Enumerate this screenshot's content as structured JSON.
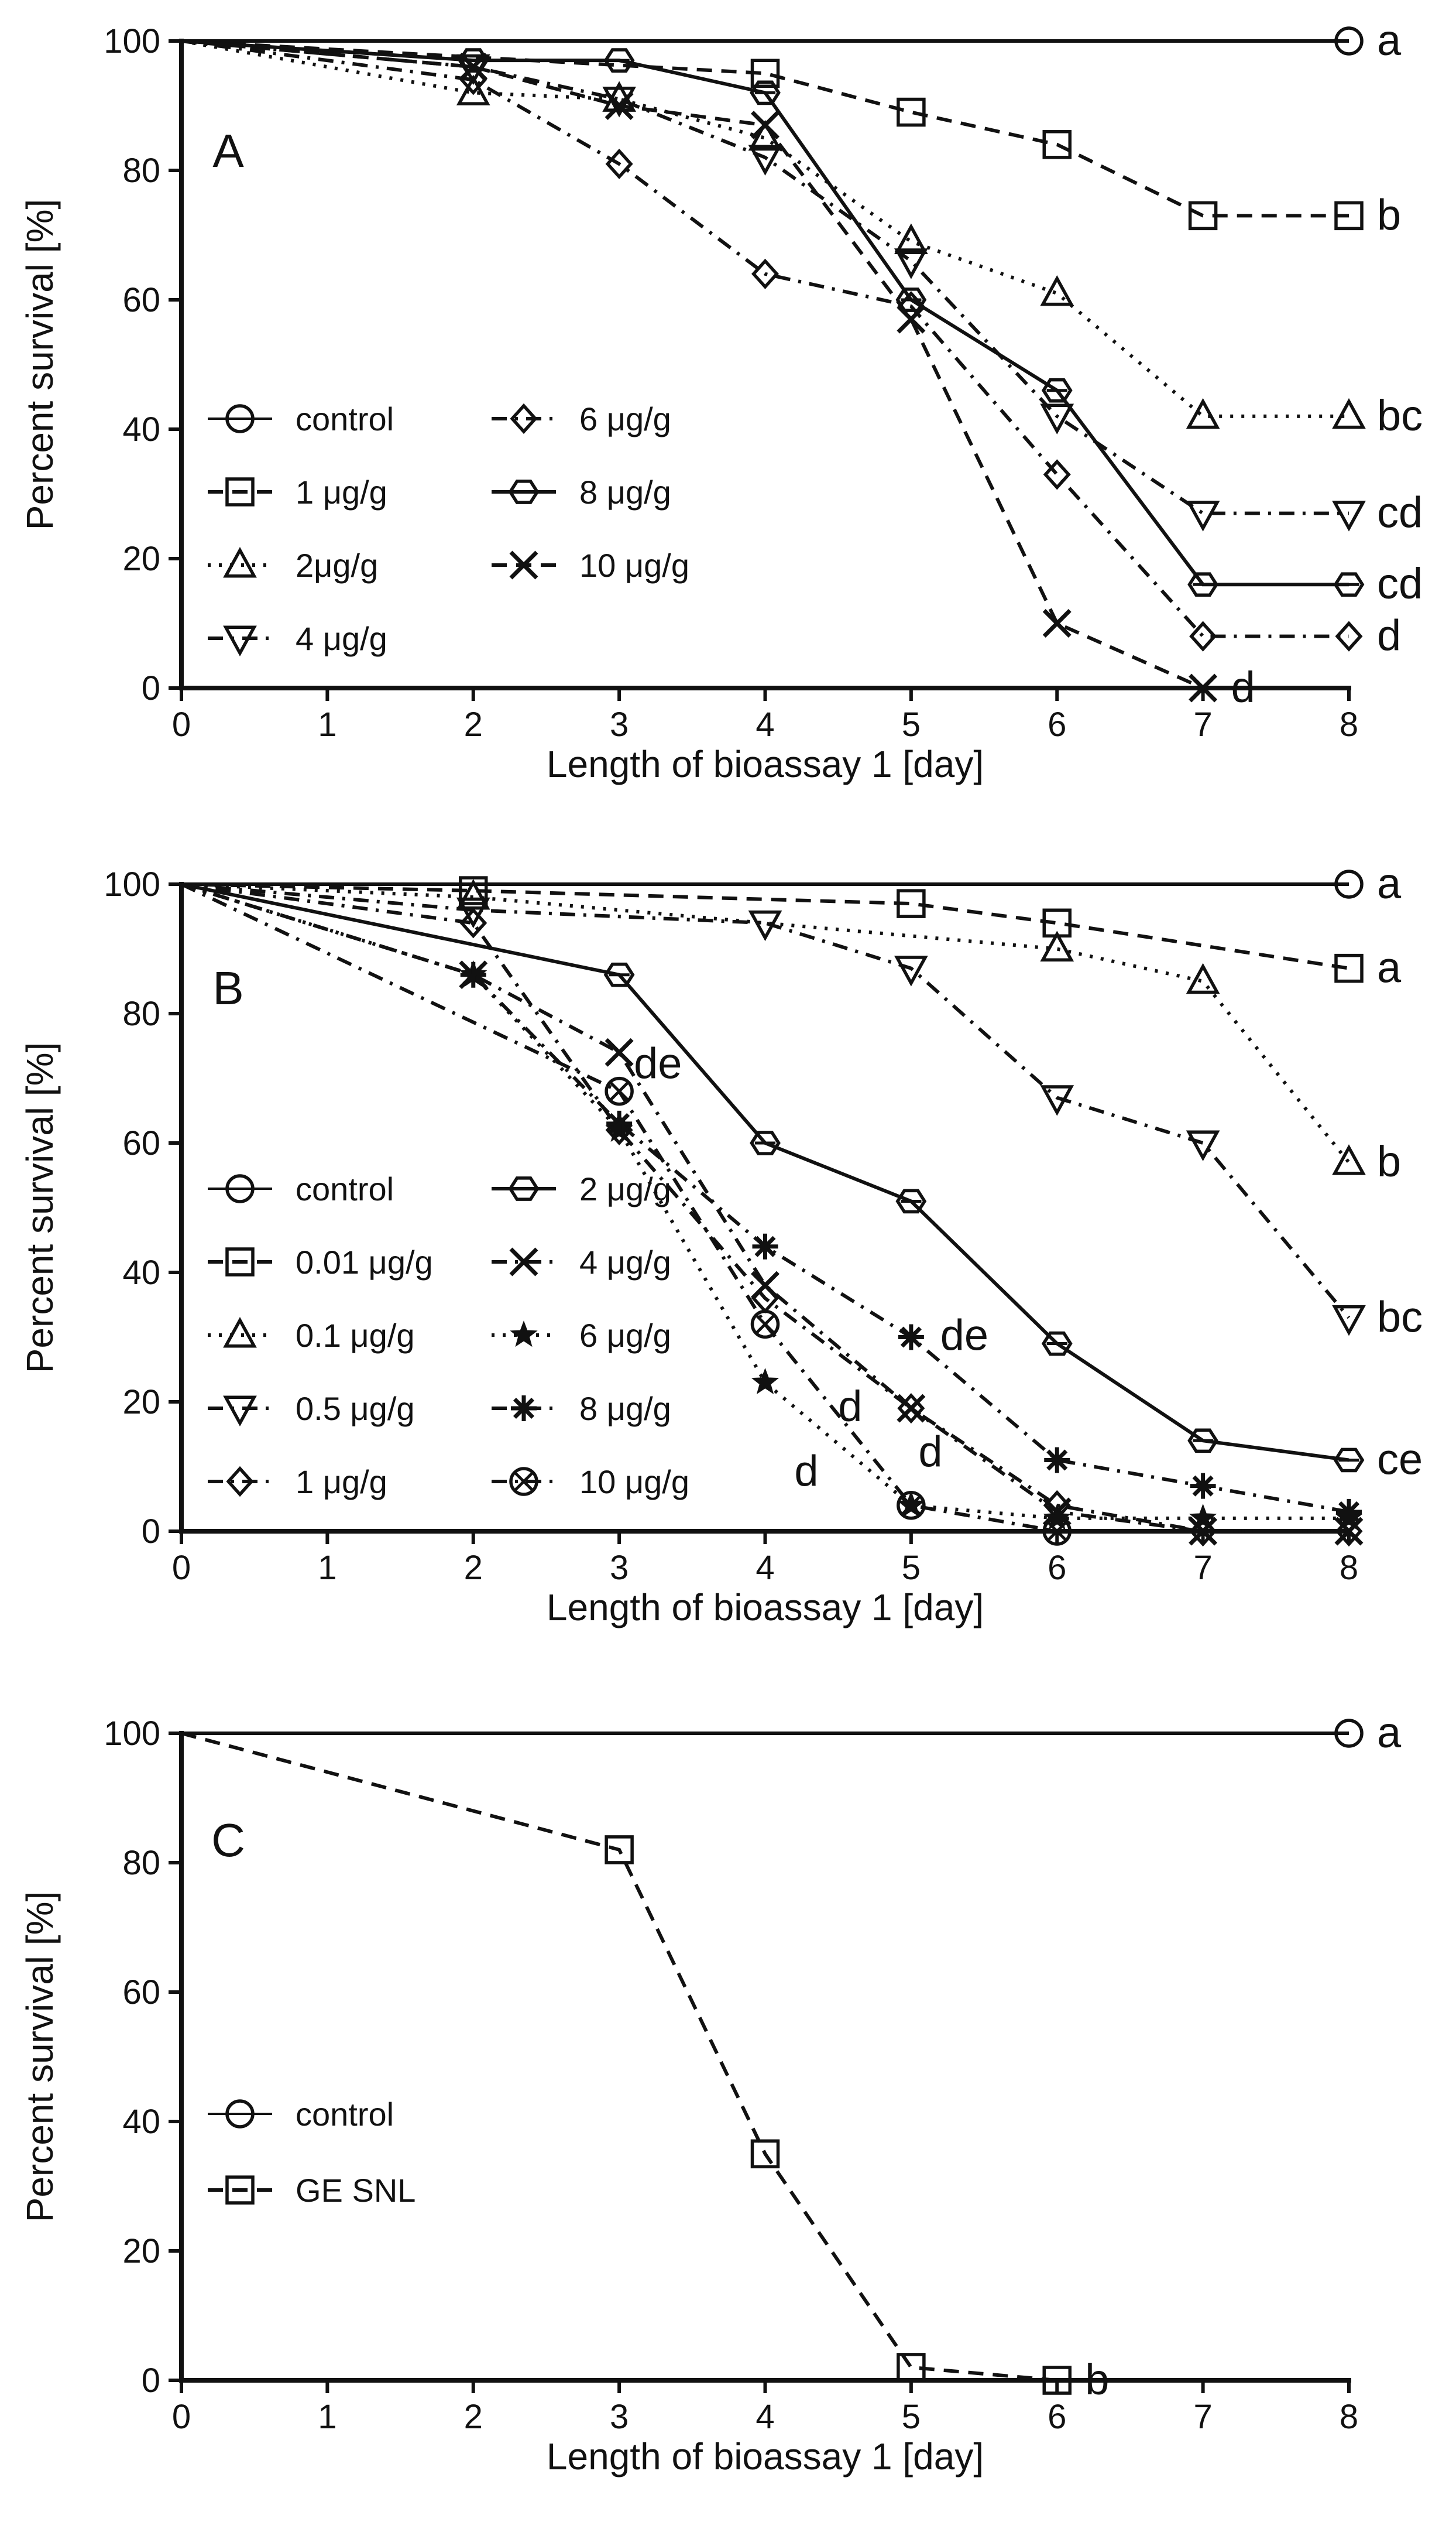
{
  "colors": {
    "ink": "#111111",
    "background": "#ffffff"
  },
  "chart_data": [
    {
      "type": "line",
      "panel": "A",
      "xlabel": "Length of bioassay 1 [day]",
      "ylabel": "Percent survival [%]",
      "x_ticks": [
        "0",
        "1",
        "2",
        "3",
        "4",
        "5",
        "6",
        "7",
        "8"
      ],
      "y_ticks": [
        "0",
        "20",
        "40",
        "60",
        "80",
        "100"
      ],
      "xlim": [
        0,
        8
      ],
      "ylim": [
        0,
        100
      ],
      "legend_columns": 2,
      "series": [
        {
          "name": "control",
          "marker": "circle",
          "dash": "solid-thin",
          "x": [
            0,
            8
          ],
          "y": [
            100,
            100
          ],
          "end_label": "a"
        },
        {
          "name": "1 μg/g",
          "marker": "square",
          "dash": "dashed",
          "x": [
            0,
            4,
            5,
            6,
            7,
            8
          ],
          "y": [
            100,
            95,
            89,
            84,
            73,
            73
          ],
          "end_label": "b"
        },
        {
          "name": "2μg/g",
          "marker": "triangle-up",
          "dash": "dotted",
          "x": [
            0,
            2,
            3,
            4,
            5,
            6,
            7,
            8
          ],
          "y": [
            100,
            92,
            91,
            85,
            69,
            61,
            42,
            42
          ],
          "end_label": "bc"
        },
        {
          "name": "4 μg/g",
          "marker": "triangle-down",
          "dash": "dashdot",
          "x": [
            0,
            2,
            3,
            4,
            5,
            6,
            7,
            8
          ],
          "y": [
            100,
            96,
            91,
            82,
            66,
            42,
            27,
            27
          ],
          "end_label": "cd"
        },
        {
          "name": "6 μg/g",
          "marker": "diamond",
          "dash": "dashdot",
          "x": [
            0,
            2,
            3,
            4,
            5,
            6,
            7,
            8
          ],
          "y": [
            100,
            94,
            81,
            64,
            59,
            33,
            8,
            8
          ],
          "end_label": "d"
        },
        {
          "name": "8 μg/g",
          "marker": "hexagon",
          "dash": "solid",
          "x": [
            0,
            2,
            3,
            4,
            5,
            6,
            7,
            8
          ],
          "y": [
            100,
            97,
            97,
            92,
            60,
            46,
            16,
            16
          ],
          "end_label": "cd"
        },
        {
          "name": "10 μg/g",
          "marker": "x",
          "dash": "dashed",
          "x": [
            0,
            2,
            3,
            4,
            5,
            6,
            7
          ],
          "y": [
            100,
            96,
            90,
            87,
            57,
            10,
            0
          ],
          "end_label": "d"
        }
      ]
    },
    {
      "type": "line",
      "panel": "B",
      "xlabel": "Length of bioassay 1 [day]",
      "ylabel": "Percent survival [%]",
      "x_ticks": [
        "0",
        "1",
        "2",
        "3",
        "4",
        "5",
        "6",
        "7",
        "8"
      ],
      "y_ticks": [
        "0",
        "20",
        "40",
        "60",
        "80",
        "100"
      ],
      "xlim": [
        0,
        8
      ],
      "ylim": [
        0,
        100
      ],
      "legend_columns": 2,
      "series": [
        {
          "name": "control",
          "marker": "circle",
          "dash": "solid-thin",
          "x": [
            0,
            8
          ],
          "y": [
            100,
            100
          ],
          "end_label": "a"
        },
        {
          "name": "0.01 μg/g",
          "marker": "square",
          "dash": "dashed",
          "x": [
            0,
            2,
            5,
            6,
            8
          ],
          "y": [
            100,
            99,
            97,
            94,
            87
          ],
          "end_label": "a"
        },
        {
          "name": "0.1 μg/g",
          "marker": "triangle-up",
          "dash": "dotted",
          "x": [
            0,
            2,
            6,
            7,
            8
          ],
          "y": [
            100,
            98,
            90,
            85,
            57
          ],
          "end_label": "b"
        },
        {
          "name": "0.5 μg/g",
          "marker": "triangle-down",
          "dash": "dashdot",
          "x": [
            0,
            2,
            4,
            5,
            6,
            7,
            8
          ],
          "y": [
            100,
            96,
            94,
            87,
            67,
            60,
            33
          ],
          "end_label": "bc"
        },
        {
          "name": "1 μg/g",
          "marker": "diamond",
          "dash": "dashdot",
          "x": [
            0,
            2,
            3,
            4,
            5,
            6,
            7,
            8
          ],
          "y": [
            100,
            94,
            62,
            36,
            19,
            4,
            0,
            0
          ]
        },
        {
          "name": "2 μg/g",
          "marker": "hexagon",
          "dash": "solid",
          "x": [
            0,
            3,
            4,
            5,
            6,
            7,
            8
          ],
          "y": [
            100,
            86,
            60,
            51,
            29,
            14,
            11
          ],
          "end_label": "ce"
        },
        {
          "name": "4 μg/g",
          "marker": "x",
          "dash": "dashdot",
          "x": [
            0,
            2,
            3,
            4,
            5,
            6,
            7,
            8
          ],
          "y": [
            100,
            86,
            74,
            38,
            19,
            3,
            0,
            0
          ]
        },
        {
          "name": "6 μg/g",
          "marker": "star",
          "dash": "dotted",
          "x": [
            0,
            2,
            3,
            4,
            5,
            6,
            7,
            8
          ],
          "y": [
            100,
            86,
            62,
            23,
            4,
            2,
            2,
            2
          ]
        },
        {
          "name": "8 μg/g",
          "marker": "asterisk",
          "dash": "dashdot",
          "x": [
            0,
            2,
            3,
            4,
            5,
            6,
            7,
            8
          ],
          "y": [
            100,
            86,
            63,
            44,
            30,
            11,
            7,
            3
          ]
        },
        {
          "name": "10 μg/g",
          "marker": "circle-x",
          "dash": "dashdot",
          "x": [
            0,
            3,
            4,
            5,
            6
          ],
          "y": [
            100,
            68,
            32,
            4,
            0
          ]
        }
      ],
      "annotations": [
        {
          "text": "de",
          "x": 3.1,
          "y": 70
        },
        {
          "text": "de",
          "x": 5.2,
          "y": 28
        },
        {
          "text": "d",
          "x": 4.5,
          "y": 17
        },
        {
          "text": "d",
          "x": 5.05,
          "y": 10
        },
        {
          "text": "d",
          "x": 4.2,
          "y": 7
        }
      ]
    },
    {
      "type": "line",
      "panel": "C",
      "xlabel": "Length of bioassay 1 [day]",
      "ylabel": "Percent survival [%]",
      "x_ticks": [
        "0",
        "1",
        "2",
        "3",
        "4",
        "5",
        "6",
        "7",
        "8"
      ],
      "y_ticks": [
        "0",
        "20",
        "40",
        "60",
        "80",
        "100"
      ],
      "xlim": [
        0,
        8
      ],
      "ylim": [
        0,
        100
      ],
      "legend_columns": 1,
      "series": [
        {
          "name": "control",
          "marker": "circle",
          "dash": "solid-thin",
          "x": [
            0,
            8
          ],
          "y": [
            100,
            100
          ],
          "end_label": "a"
        },
        {
          "name": "GE SNL",
          "marker": "square",
          "dash": "dashed",
          "x": [
            0,
            3,
            4,
            5,
            6
          ],
          "y": [
            100,
            82,
            35,
            2,
            0
          ],
          "end_label": "b"
        }
      ]
    }
  ]
}
